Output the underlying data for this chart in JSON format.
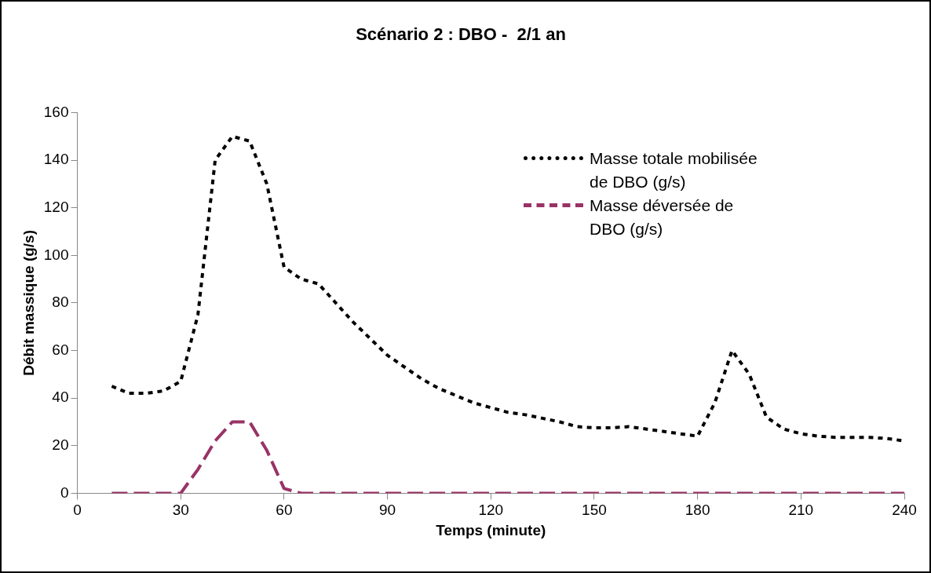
{
  "chart_data": {
    "type": "line",
    "title": "Scénario 2 : DBO -  2/1 an",
    "xlabel": "Temps (minute)",
    "ylabel": "Débit massique (g/s)",
    "x": [
      10,
      15,
      20,
      25,
      30,
      35,
      40,
      45,
      50,
      55,
      60,
      65,
      70,
      75,
      80,
      85,
      90,
      95,
      100,
      105,
      110,
      115,
      120,
      125,
      130,
      135,
      140,
      145,
      150,
      155,
      160,
      165,
      170,
      175,
      180,
      185,
      190,
      195,
      200,
      205,
      210,
      215,
      220,
      225,
      230,
      235,
      240
    ],
    "series": [
      {
        "name": "Masse totale mobilisée de DBO (g/s)",
        "color": "#000000",
        "line_style": "dotted",
        "values": [
          45,
          42,
          42,
          43,
          47,
          75,
          140,
          150,
          148,
          130,
          95,
          90,
          88,
          80,
          72,
          65,
          58,
          53,
          48,
          44,
          41,
          38,
          36,
          34,
          33,
          31.5,
          30,
          28,
          27.5,
          27.5,
          28,
          27,
          26,
          25,
          24,
          38,
          60,
          50,
          32,
          27,
          25,
          24,
          23.5,
          23.5,
          23.5,
          23,
          22
        ]
      },
      {
        "name": "Masse déversée de DBO (g/s)",
        "color": "#993366",
        "line_style": "dashed",
        "values": [
          0,
          0,
          0,
          0,
          0,
          10,
          22,
          30,
          30,
          18,
          2,
          0,
          0,
          0,
          0,
          0,
          0,
          0,
          0,
          0,
          0,
          0,
          0,
          0,
          0,
          0,
          0,
          0,
          0,
          0,
          0,
          0,
          0,
          0,
          0,
          0,
          0,
          0,
          0,
          0,
          0,
          0,
          0,
          0,
          0,
          0,
          0
        ]
      }
    ],
    "xlim": [
      0,
      240
    ],
    "xticks": [
      0,
      30,
      60,
      90,
      120,
      150,
      180,
      210,
      240
    ],
    "ylim": [
      0,
      160
    ],
    "yticks": [
      0,
      20,
      40,
      60,
      80,
      100,
      120,
      140,
      160
    ],
    "grid": false,
    "legend": "top right",
    "marker": "none"
  }
}
